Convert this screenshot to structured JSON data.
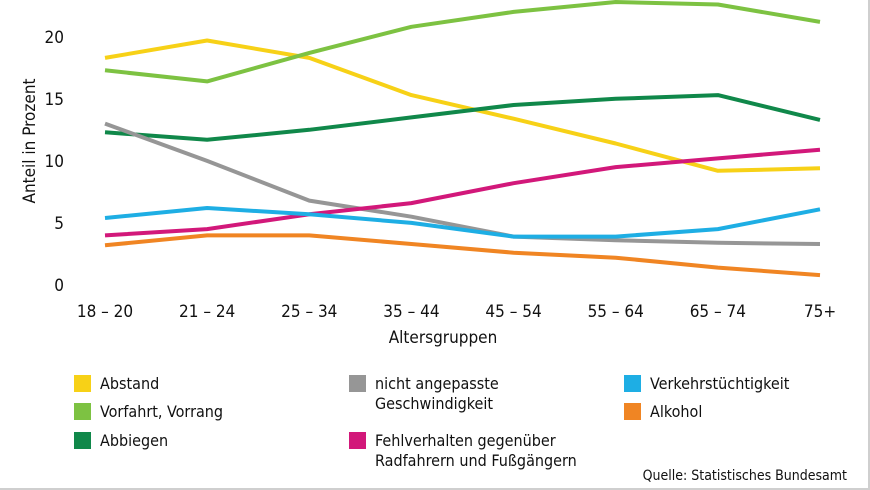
{
  "chart_data": {
    "type": "line",
    "title": "",
    "xlabel": "Altersgruppen",
    "ylabel": "Anteil in Prozent",
    "ylim": [
      0,
      22.8
    ],
    "yticks": [
      0,
      5,
      10,
      15,
      20
    ],
    "grid": false,
    "categories": [
      "18 – 20",
      "21 – 24",
      "25 – 34",
      "35 – 44",
      "45 – 54",
      "55 – 64",
      "65 – 74",
      "75+"
    ],
    "series": [
      {
        "name": "Abstand",
        "color": "#f7d117",
        "values": [
          18.3,
          19.7,
          18.3,
          15.3,
          13.4,
          11.4,
          9.2,
          9.4
        ]
      },
      {
        "name": "Vorfahrt, Vorrang",
        "color": "#7dc242",
        "values": [
          17.3,
          16.4,
          18.7,
          20.8,
          22.0,
          22.8,
          22.6,
          21.2
        ]
      },
      {
        "name": "Abbiegen",
        "color": "#10884a",
        "values": [
          12.3,
          11.7,
          12.5,
          13.5,
          14.5,
          15.0,
          15.3,
          13.3
        ]
      },
      {
        "name": "nicht angepasste Geschwindigkeit",
        "color": "#969696",
        "values": [
          13.0,
          10.0,
          6.8,
          5.5,
          3.9,
          3.6,
          3.4,
          3.3
        ]
      },
      {
        "name": "Fehlverhalten gegenüber Radfahrern und Fußgängern",
        "color": "#d2187a",
        "values": [
          4.0,
          4.5,
          5.7,
          6.6,
          8.2,
          9.5,
          10.2,
          10.9
        ]
      },
      {
        "name": "Verkehrstüchtigkeit",
        "color": "#1eaee4",
        "values": [
          5.4,
          6.2,
          5.7,
          5.0,
          3.9,
          3.9,
          4.5,
          6.1
        ]
      },
      {
        "name": "Alkohol",
        "color": "#f08523",
        "values": [
          3.2,
          4.0,
          4.0,
          3.3,
          2.6,
          2.2,
          1.4,
          0.8
        ]
      }
    ],
    "legend": [
      {
        "lines": [
          "Abstand"
        ],
        "color": "#f7d117"
      },
      {
        "lines": [
          "Vorfahrt, Vorrang"
        ],
        "color": "#7dc242"
      },
      {
        "lines": [
          "Abbiegen"
        ],
        "color": "#10884a"
      },
      {
        "lines": [
          "nicht angepasste",
          "Geschwindigkeit"
        ],
        "color": "#969696"
      },
      {
        "lines": [
          "Fehlverhalten gegenüber",
          "Radfahrern und Fußgängern"
        ],
        "color": "#d2187a"
      },
      {
        "lines": [
          "Verkehrstüchtigkeit"
        ],
        "color": "#1eaee4"
      },
      {
        "lines": [
          "Alkohol"
        ],
        "color": "#f08523"
      }
    ],
    "legend_placement": "bottom",
    "source": "Quelle: Statistisches Bundesamt"
  }
}
